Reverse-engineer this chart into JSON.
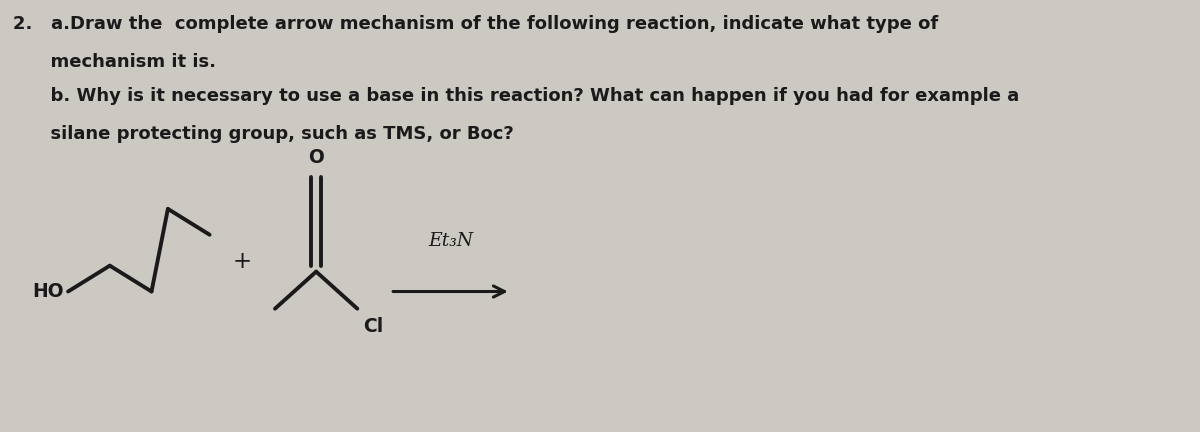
{
  "bg_color": "#ccc9c2",
  "text_color": "#1a1a1a",
  "line1": "2.   a.Draw the  complete arrow mechanism of the following reaction, indicate what type of",
  "line2": "      mechanism it is.",
  "line3": "      b. Why is it necessary to use a base in this reaction? What can happen if you had for example a",
  "line4": "      silane protecting group, such as TMS, or Boc?",
  "plus_sign": "+",
  "reagent": "Et₃N",
  "HO_label": "HO",
  "Cl_label": "Cl",
  "O_label": "O",
  "title_fontsize": 13.0,
  "chem_fontsize": 13.5,
  "line_width": 2.8
}
